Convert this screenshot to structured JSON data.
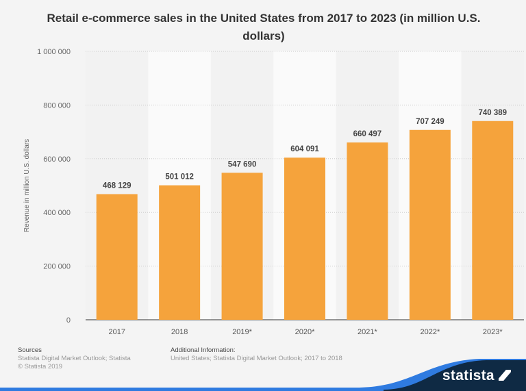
{
  "chart_data": {
    "type": "bar",
    "title": "Retail e-commerce sales in the United States from 2017 to 2023 (in million U.S. dollars)",
    "xlabel": "",
    "ylabel": "Revenue in million U.S. dollars",
    "categories": [
      "2017",
      "2018",
      "2019*",
      "2020*",
      "2021*",
      "2022*",
      "2023*"
    ],
    "values": [
      468129,
      501012,
      547690,
      604091,
      660497,
      707249,
      740389
    ],
    "data_labels": [
      "468 129",
      "501 012",
      "547 690",
      "604 091",
      "660 497",
      "707 249",
      "740 389"
    ],
    "ylim": [
      0,
      1000000
    ],
    "yticks": [
      0,
      200000,
      400000,
      600000,
      800000,
      1000000
    ],
    "ytick_labels": [
      "0",
      "200 000",
      "400 000",
      "600 000",
      "800 000",
      "1 000 000"
    ],
    "grid": true,
    "bar_color": "#f5a33c"
  },
  "footer": {
    "sources_label": "Sources",
    "sources_text": "Statista Digital Market Outlook; Statista",
    "copyright": "© Statista 2019",
    "additional_label": "Additional Information:",
    "additional_text": "United States; Statista Digital Market Outlook; 2017 to 2018",
    "logo": "statista"
  }
}
